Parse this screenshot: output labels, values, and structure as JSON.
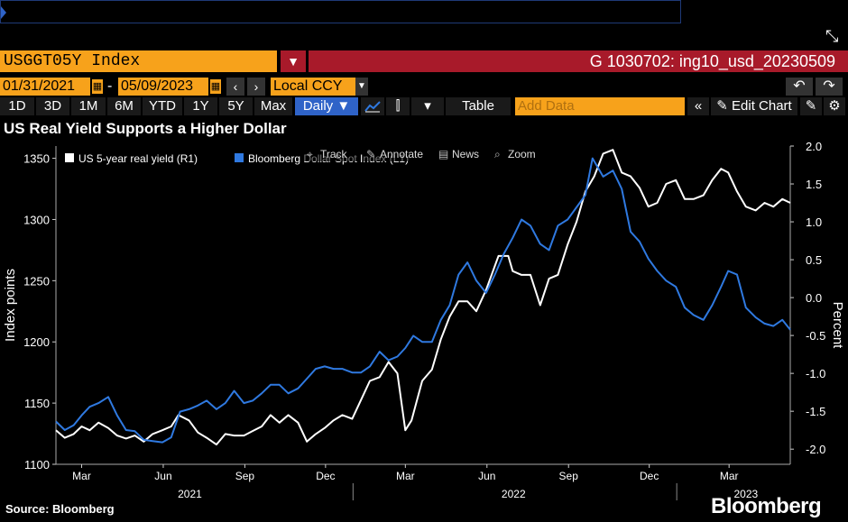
{
  "header": {
    "ticker": "USGGT05Y Index",
    "chart_id": "G 1030702: ing10_usd_20230509"
  },
  "controls": {
    "start_date": "01/31/2021",
    "end_date": "05/09/2023",
    "currency": "Local CCY",
    "periods": [
      "1D",
      "3D",
      "1M",
      "6M",
      "YTD",
      "1Y",
      "5Y",
      "Max"
    ],
    "frequency": "Daily ▼",
    "table_label": "Table",
    "add_data_placeholder": "Add Data",
    "edit_chart_label": "Edit Chart"
  },
  "overlay_tools": [
    "Track",
    "Annotate",
    "News",
    "Zoom"
  ],
  "footer": {
    "source": "Source: Bloomberg",
    "brand": "Bloomberg"
  },
  "colors": {
    "accent": "#f7a21b",
    "header_red": "#a81a2a",
    "series_blue": "#2f79e0",
    "series_white": "#ffffff"
  },
  "chart_data": {
    "type": "line",
    "title": "US Real Yield Supports a Higher Dollar",
    "ylabel_left": "Index points",
    "ylabel_right": "Percent",
    "y_left_range": [
      1100,
      1360
    ],
    "y_right_range": [
      -2.2,
      2.0
    ],
    "y_left_ticks": [
      1100,
      1150,
      1200,
      1250,
      1300,
      1350
    ],
    "y_right_ticks": [
      -2.0,
      -1.5,
      -1.0,
      -0.5,
      0.0,
      0.5,
      1.0,
      1.5,
      2.0
    ],
    "y_right_tick_labels": [
      "-2.0",
      "-1.5",
      "-1.0",
      "-0.5",
      "0.0",
      "0.5",
      "1.0",
      "1.5",
      "2.0"
    ],
    "x_range": [
      "2021-01-31",
      "2023-05-09"
    ],
    "x_month_ticks": [
      {
        "label": "Mar",
        "date": "2021-03-01"
      },
      {
        "label": "Jun",
        "date": "2021-06-01"
      },
      {
        "label": "Sep",
        "date": "2021-09-01"
      },
      {
        "label": "Dec",
        "date": "2021-12-01"
      },
      {
        "label": "Mar",
        "date": "2022-03-01"
      },
      {
        "label": "Jun",
        "date": "2022-06-01"
      },
      {
        "label": "Sep",
        "date": "2022-09-01"
      },
      {
        "label": "Dec",
        "date": "2022-12-01"
      },
      {
        "label": "Mar",
        "date": "2023-03-01"
      }
    ],
    "x_year_labels": [
      {
        "label": "2021",
        "date": "2021-07-01"
      },
      {
        "label": "2022",
        "date": "2022-07-01"
      },
      {
        "label": "2023",
        "date": "2023-03-20"
      }
    ],
    "x_year_dividers": [
      "2022-01-01",
      "2023-01-01"
    ],
    "series": [
      {
        "name": "US 5-year real yield (R1)",
        "axis": "right",
        "color": "#ffffff",
        "points": [
          [
            "2021-01-31",
            -1.75
          ],
          [
            "2021-02-10",
            -1.85
          ],
          [
            "2021-02-20",
            -1.8
          ],
          [
            "2021-03-01",
            -1.7
          ],
          [
            "2021-03-10",
            -1.75
          ],
          [
            "2021-03-20",
            -1.65
          ],
          [
            "2021-03-31",
            -1.72
          ],
          [
            "2021-04-10",
            -1.82
          ],
          [
            "2021-04-20",
            -1.86
          ],
          [
            "2021-04-30",
            -1.82
          ],
          [
            "2021-05-10",
            -1.9
          ],
          [
            "2021-05-20",
            -1.8
          ],
          [
            "2021-05-31",
            -1.75
          ],
          [
            "2021-06-10",
            -1.7
          ],
          [
            "2021-06-18",
            -1.55
          ],
          [
            "2021-06-30",
            -1.62
          ],
          [
            "2021-07-10",
            -1.78
          ],
          [
            "2021-07-20",
            -1.85
          ],
          [
            "2021-07-31",
            -1.94
          ],
          [
            "2021-08-10",
            -1.8
          ],
          [
            "2021-08-20",
            -1.82
          ],
          [
            "2021-08-31",
            -1.82
          ],
          [
            "2021-09-10",
            -1.76
          ],
          [
            "2021-09-20",
            -1.7
          ],
          [
            "2021-09-30",
            -1.55
          ],
          [
            "2021-10-10",
            -1.65
          ],
          [
            "2021-10-20",
            -1.55
          ],
          [
            "2021-10-31",
            -1.65
          ],
          [
            "2021-11-10",
            -1.9
          ],
          [
            "2021-11-20",
            -1.8
          ],
          [
            "2021-11-30",
            -1.72
          ],
          [
            "2021-12-10",
            -1.62
          ],
          [
            "2021-12-20",
            -1.55
          ],
          [
            "2021-12-31",
            -1.6
          ],
          [
            "2022-01-10",
            -1.35
          ],
          [
            "2022-01-20",
            -1.1
          ],
          [
            "2022-01-31",
            -1.05
          ],
          [
            "2022-02-10",
            -0.85
          ],
          [
            "2022-02-20",
            -1.0
          ],
          [
            "2022-03-01",
            -1.75
          ],
          [
            "2022-03-08",
            -1.62
          ],
          [
            "2022-03-20",
            -1.1
          ],
          [
            "2022-03-31",
            -0.95
          ],
          [
            "2022-04-10",
            -0.55
          ],
          [
            "2022-04-20",
            -0.25
          ],
          [
            "2022-04-30",
            -0.05
          ],
          [
            "2022-05-10",
            -0.05
          ],
          [
            "2022-05-20",
            -0.18
          ],
          [
            "2022-05-31",
            0.1
          ],
          [
            "2022-06-14",
            0.55
          ],
          [
            "2022-06-25",
            0.55
          ],
          [
            "2022-06-30",
            0.35
          ],
          [
            "2022-07-10",
            0.3
          ],
          [
            "2022-07-20",
            0.3
          ],
          [
            "2022-07-31",
            -0.1
          ],
          [
            "2022-08-10",
            0.25
          ],
          [
            "2022-08-20",
            0.3
          ],
          [
            "2022-08-31",
            0.7
          ],
          [
            "2022-09-10",
            1.0
          ],
          [
            "2022-09-20",
            1.4
          ],
          [
            "2022-09-30",
            1.6
          ],
          [
            "2022-10-10",
            1.9
          ],
          [
            "2022-10-21",
            1.95
          ],
          [
            "2022-10-31",
            1.65
          ],
          [
            "2022-11-10",
            1.6
          ],
          [
            "2022-11-20",
            1.45
          ],
          [
            "2022-11-30",
            1.2
          ],
          [
            "2022-12-10",
            1.25
          ],
          [
            "2022-12-20",
            1.5
          ],
          [
            "2022-12-31",
            1.55
          ],
          [
            "2023-01-10",
            1.3
          ],
          [
            "2023-01-20",
            1.3
          ],
          [
            "2023-01-31",
            1.35
          ],
          [
            "2023-02-10",
            1.55
          ],
          [
            "2023-02-20",
            1.7
          ],
          [
            "2023-02-28",
            1.65
          ],
          [
            "2023-03-10",
            1.4
          ],
          [
            "2023-03-20",
            1.2
          ],
          [
            "2023-03-31",
            1.15
          ],
          [
            "2023-04-10",
            1.25
          ],
          [
            "2023-04-20",
            1.2
          ],
          [
            "2023-04-30",
            1.3
          ],
          [
            "2023-05-09",
            1.25
          ]
        ]
      },
      {
        "name": "Bloomberg Dollar Spot Index (L1)",
        "axis": "left",
        "color": "#2f79e0",
        "points": [
          [
            "2021-01-31",
            1135
          ],
          [
            "2021-02-10",
            1128
          ],
          [
            "2021-02-20",
            1132
          ],
          [
            "2021-03-01",
            1140
          ],
          [
            "2021-03-10",
            1147
          ],
          [
            "2021-03-20",
            1150
          ],
          [
            "2021-03-31",
            1155
          ],
          [
            "2021-04-10",
            1140
          ],
          [
            "2021-04-20",
            1128
          ],
          [
            "2021-04-30",
            1127
          ],
          [
            "2021-05-10",
            1120
          ],
          [
            "2021-05-20",
            1119
          ],
          [
            "2021-05-31",
            1118
          ],
          [
            "2021-06-10",
            1122
          ],
          [
            "2021-06-20",
            1143
          ],
          [
            "2021-06-30",
            1145
          ],
          [
            "2021-07-10",
            1148
          ],
          [
            "2021-07-20",
            1152
          ],
          [
            "2021-07-31",
            1145
          ],
          [
            "2021-08-10",
            1150
          ],
          [
            "2021-08-20",
            1160
          ],
          [
            "2021-08-31",
            1150
          ],
          [
            "2021-09-10",
            1152
          ],
          [
            "2021-09-20",
            1158
          ],
          [
            "2021-09-30",
            1165
          ],
          [
            "2021-10-10",
            1165
          ],
          [
            "2021-10-20",
            1158
          ],
          [
            "2021-10-31",
            1162
          ],
          [
            "2021-11-10",
            1170
          ],
          [
            "2021-11-20",
            1178
          ],
          [
            "2021-11-30",
            1180
          ],
          [
            "2021-12-10",
            1178
          ],
          [
            "2021-12-20",
            1178
          ],
          [
            "2021-12-31",
            1175
          ],
          [
            "2022-01-10",
            1175
          ],
          [
            "2022-01-20",
            1180
          ],
          [
            "2022-01-31",
            1192
          ],
          [
            "2022-02-10",
            1185
          ],
          [
            "2022-02-20",
            1188
          ],
          [
            "2022-03-01",
            1195
          ],
          [
            "2022-03-10",
            1205
          ],
          [
            "2022-03-20",
            1200
          ],
          [
            "2022-03-31",
            1200
          ],
          [
            "2022-04-10",
            1218
          ],
          [
            "2022-04-20",
            1230
          ],
          [
            "2022-04-30",
            1255
          ],
          [
            "2022-05-10",
            1265
          ],
          [
            "2022-05-20",
            1250
          ],
          [
            "2022-05-31",
            1240
          ],
          [
            "2022-06-10",
            1255
          ],
          [
            "2022-06-20",
            1272
          ],
          [
            "2022-06-30",
            1285
          ],
          [
            "2022-07-10",
            1300
          ],
          [
            "2022-07-20",
            1295
          ],
          [
            "2022-07-31",
            1280
          ],
          [
            "2022-08-10",
            1275
          ],
          [
            "2022-08-20",
            1295
          ],
          [
            "2022-08-31",
            1300
          ],
          [
            "2022-09-10",
            1310
          ],
          [
            "2022-09-20",
            1320
          ],
          [
            "2022-09-28",
            1350
          ],
          [
            "2022-10-10",
            1335
          ],
          [
            "2022-10-21",
            1340
          ],
          [
            "2022-10-31",
            1325
          ],
          [
            "2022-11-10",
            1290
          ],
          [
            "2022-11-20",
            1282
          ],
          [
            "2022-11-30",
            1268
          ],
          [
            "2022-12-10",
            1258
          ],
          [
            "2022-12-20",
            1250
          ],
          [
            "2022-12-31",
            1245
          ],
          [
            "2023-01-10",
            1228
          ],
          [
            "2023-01-20",
            1222
          ],
          [
            "2023-01-31",
            1218
          ],
          [
            "2023-02-10",
            1230
          ],
          [
            "2023-02-20",
            1245
          ],
          [
            "2023-02-28",
            1258
          ],
          [
            "2023-03-10",
            1255
          ],
          [
            "2023-03-20",
            1228
          ],
          [
            "2023-03-31",
            1220
          ],
          [
            "2023-04-10",
            1215
          ],
          [
            "2023-04-20",
            1213
          ],
          [
            "2023-04-30",
            1218
          ],
          [
            "2023-05-09",
            1210
          ]
        ]
      }
    ]
  }
}
